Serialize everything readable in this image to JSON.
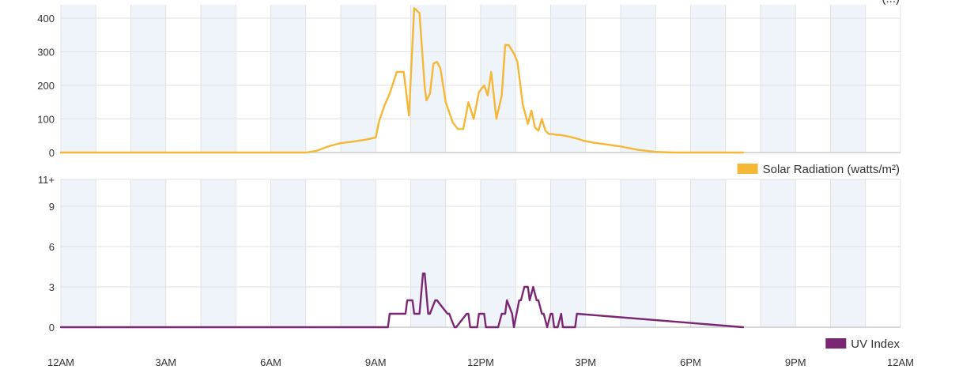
{
  "chart_data": [
    {
      "type": "line",
      "name": "solar",
      "legend": "Solar Radiation (watts/m²)",
      "top_partial_label": "(...)",
      "ylim": [
        0,
        440
      ],
      "yticks": [
        {
          "value": 0,
          "label": "0"
        },
        {
          "value": 100,
          "label": "100"
        },
        {
          "value": 200,
          "label": "200"
        },
        {
          "value": 300,
          "label": "300"
        },
        {
          "value": 400,
          "label": "400"
        }
      ],
      "color": "#f6b736",
      "grid": true,
      "legend_position": "bottom-right",
      "x_hours": [
        0,
        1,
        2,
        3,
        4,
        5,
        6,
        7,
        7.3,
        7.7,
        8,
        8.3,
        8.7,
        9,
        9.1,
        9.25,
        9.4,
        9.6,
        9.8,
        9.95,
        10.1,
        10.25,
        10.4,
        10.45,
        10.55,
        10.65,
        10.75,
        10.85,
        11,
        11.1,
        11.2,
        11.35,
        11.5,
        11.65,
        11.8,
        11.95,
        12.1,
        12.2,
        12.3,
        12.45,
        12.6,
        12.7,
        12.8,
        12.95,
        13.05,
        13.2,
        13.35,
        13.45,
        13.55,
        13.65,
        13.75,
        13.85,
        13.95,
        14.05,
        14.15,
        14.3,
        14.4,
        14.55,
        14.65,
        14.8,
        14.95,
        15.2,
        15.6,
        16,
        16.5,
        17,
        17.5,
        18,
        18.3,
        19,
        19.5
      ],
      "values": [
        0,
        0,
        0,
        0,
        0,
        0,
        0,
        0,
        5,
        20,
        28,
        32,
        38,
        45,
        95,
        140,
        175,
        240,
        240,
        110,
        430,
        415,
        195,
        155,
        175,
        265,
        270,
        250,
        150,
        120,
        90,
        70,
        70,
        150,
        100,
        180,
        200,
        170,
        240,
        100,
        170,
        320,
        320,
        295,
        270,
        145,
        85,
        125,
        75,
        65,
        100,
        65,
        55,
        55,
        53,
        52,
        50,
        47,
        44,
        40,
        35,
        30,
        24,
        18,
        8,
        2,
        0,
        0,
        0,
        0,
        0
      ]
    },
    {
      "type": "line",
      "name": "uv",
      "legend": "UV Index",
      "ylim": [
        0,
        11
      ],
      "yticks": [
        {
          "value": 0,
          "label": "0"
        },
        {
          "value": 3,
          "label": "3"
        },
        {
          "value": 6,
          "label": "6"
        },
        {
          "value": 9,
          "label": "9"
        },
        {
          "value": 11,
          "label": "11+"
        }
      ],
      "color": "#7b2673",
      "grid": true,
      "legend_position": "bottom-right",
      "x_hours": [
        0,
        9.35,
        9.4,
        9.85,
        9.9,
        10.05,
        10.1,
        10.25,
        10.35,
        10.4,
        10.5,
        10.55,
        10.7,
        10.75,
        11.05,
        11.1,
        11.25,
        11.3,
        11.6,
        11.65,
        11.7,
        11.9,
        11.95,
        12.05,
        12.1,
        12.15,
        12.5,
        12.6,
        12.7,
        12.75,
        12.9,
        12.95,
        13.1,
        13.15,
        13.25,
        13.35,
        13.4,
        13.5,
        13.6,
        13.65,
        13.75,
        13.8,
        13.9,
        14.0,
        14.05,
        14.1,
        14.2,
        14.3,
        14.35,
        14.45,
        14.5,
        14.7,
        14.75,
        19.5
      ],
      "values": [
        0,
        0,
        1,
        1,
        2,
        2,
        1,
        1,
        4,
        4,
        1,
        1,
        2,
        2,
        1,
        1,
        0,
        0,
        1,
        1,
        0,
        0,
        1,
        1,
        1,
        0,
        0,
        1,
        1,
        2,
        1,
        0,
        2,
        2,
        3,
        3,
        2,
        3,
        2,
        2,
        1,
        1,
        0,
        1,
        1,
        0,
        0,
        1,
        0,
        0,
        0,
        0,
        1,
        0
      ]
    }
  ],
  "x_axis": {
    "min_hour": 0,
    "max_hour": 24,
    "ticks": [
      {
        "hour": 0,
        "label": "12AM"
      },
      {
        "hour": 3,
        "label": "3AM"
      },
      {
        "hour": 6,
        "label": "6AM"
      },
      {
        "hour": 9,
        "label": "9AM"
      },
      {
        "hour": 12,
        "label": "12PM"
      },
      {
        "hour": 15,
        "label": "3PM"
      },
      {
        "hour": 18,
        "label": "6PM"
      },
      {
        "hour": 21,
        "label": "9PM"
      },
      {
        "hour": 24,
        "label": "12AM"
      }
    ]
  },
  "colors": {
    "band": "#eef4f9",
    "grid": "#e2e2e2",
    "axis": "#cccccc",
    "text": "#333333"
  }
}
